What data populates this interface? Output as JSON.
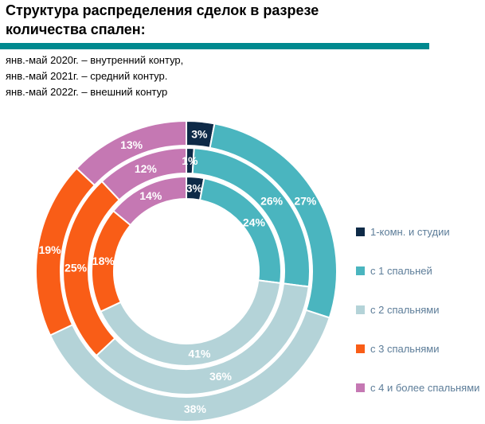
{
  "header": {
    "title": "Структура распределения сделок в разрезе количества спален:",
    "accent_color": "#00898f"
  },
  "contour_notes": [
    "янв.-май 2020г. – внутренний контур,",
    "янв.-май 2021г. – средний контур.",
    "янв.-май 2022г. – внешний контур"
  ],
  "legend": {
    "items": [
      {
        "label": "1-комн. и студии",
        "color": "#0e2a47"
      },
      {
        "label": "с 1 спальней",
        "color": "#4ab5bf"
      },
      {
        "label": "с 2 спальнями",
        "color": "#b4d3d8"
      },
      {
        "label": "с 3 спальнями",
        "color": "#f95d17"
      },
      {
        "label": "с 4 и более спальнями",
        "color": "#c578b3"
      }
    ]
  },
  "chart_data": {
    "type": "pie",
    "subtype": "multi-ring-donut",
    "title": "Структура распределения сделок в разрезе количества спален:",
    "unit": "%",
    "categories": [
      "1-комн. и студии",
      "с 1 спальней",
      "с 2 спальнями",
      "с 3 спальнями",
      "с 4 и более спальнями"
    ],
    "colors": [
      "#0e2a47",
      "#4ab5bf",
      "#b4d3d8",
      "#f95d17",
      "#c578b3"
    ],
    "start_angle_deg": -90,
    "direction": "clockwise",
    "legend_position": "right",
    "series": [
      {
        "name": "янв.-май 2020г.",
        "ring": "inner",
        "values": [
          3,
          24,
          41,
          18,
          14
        ]
      },
      {
        "name": "янв.-май 2021г.",
        "ring": "middle",
        "values": [
          1,
          26,
          36,
          25,
          12
        ]
      },
      {
        "name": "янв.-май 2022г.",
        "ring": "outer",
        "values": [
          3,
          27,
          38,
          19,
          13
        ]
      }
    ]
  }
}
